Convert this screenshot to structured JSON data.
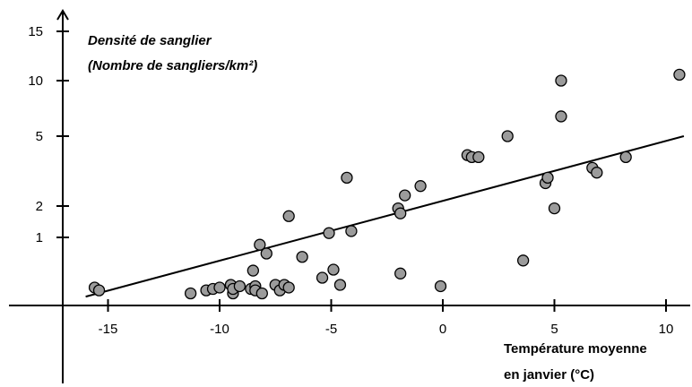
{
  "chart_data": {
    "type": "scatter",
    "ylabel_line1": "Densité de sanglier",
    "ylabel_line2": "(Nombre de sangliers/km²)",
    "xlabel_line1": "Température moyenne",
    "xlabel_line2": "en janvier (°C)",
    "x_ticks": [
      {
        "value": -15,
        "label": "-15"
      },
      {
        "value": -10,
        "label": "-10"
      },
      {
        "value": -5,
        "label": "-5"
      },
      {
        "value": 0,
        "label": "0"
      },
      {
        "value": 5,
        "label": "5"
      },
      {
        "value": 10,
        "label": "10"
      }
    ],
    "y_ticks": [
      {
        "value": 1,
        "label": "1"
      },
      {
        "value": 2,
        "label": "2"
      },
      {
        "value": 5,
        "label": "5"
      },
      {
        "value": 10,
        "label": "10"
      },
      {
        "value": 15,
        "label": "15"
      }
    ],
    "xlim": [
      -17,
      11
    ],
    "y_scale": "log",
    "points": [
      {
        "x": -15.6,
        "y": 0.33
      },
      {
        "x": -15.4,
        "y": 0.31
      },
      {
        "x": -11.3,
        "y": 0.29
      },
      {
        "x": -10.6,
        "y": 0.31
      },
      {
        "x": -10.3,
        "y": 0.32
      },
      {
        "x": -10.0,
        "y": 0.33
      },
      {
        "x": -9.5,
        "y": 0.35
      },
      {
        "x": -9.4,
        "y": 0.29
      },
      {
        "x": -9.4,
        "y": 0.32
      },
      {
        "x": -9.1,
        "y": 0.34
      },
      {
        "x": -8.6,
        "y": 0.32
      },
      {
        "x": -8.5,
        "y": 0.48
      },
      {
        "x": -8.4,
        "y": 0.34
      },
      {
        "x": -8.4,
        "y": 0.31
      },
      {
        "x": -8.2,
        "y": 0.85
      },
      {
        "x": -8.1,
        "y": 0.29
      },
      {
        "x": -7.9,
        "y": 0.7
      },
      {
        "x": -7.5,
        "y": 0.35
      },
      {
        "x": -7.3,
        "y": 0.31
      },
      {
        "x": -7.1,
        "y": 0.35
      },
      {
        "x": -6.9,
        "y": 1.6
      },
      {
        "x": -6.9,
        "y": 0.33
      },
      {
        "x": -6.3,
        "y": 0.65
      },
      {
        "x": -5.4,
        "y": 0.41
      },
      {
        "x": -5.1,
        "y": 1.1
      },
      {
        "x": -4.9,
        "y": 0.49
      },
      {
        "x": -4.6,
        "y": 0.35
      },
      {
        "x": -4.3,
        "y": 2.9
      },
      {
        "x": -4.1,
        "y": 1.15
      },
      {
        "x": -2.0,
        "y": 1.9
      },
      {
        "x": -1.9,
        "y": 1.7
      },
      {
        "x": -1.9,
        "y": 0.45
      },
      {
        "x": -1.7,
        "y": 2.3
      },
      {
        "x": -1.0,
        "y": 2.6
      },
      {
        "x": -0.1,
        "y": 0.34
      },
      {
        "x": 1.1,
        "y": 3.9
      },
      {
        "x": 1.3,
        "y": 3.8
      },
      {
        "x": 1.6,
        "y": 3.8
      },
      {
        "x": 2.9,
        "y": 5.0
      },
      {
        "x": 3.6,
        "y": 0.6
      },
      {
        "x": 4.6,
        "y": 2.7
      },
      {
        "x": 4.7,
        "y": 2.9
      },
      {
        "x": 5.0,
        "y": 1.9
      },
      {
        "x": 5.3,
        "y": 10.0
      },
      {
        "x": 5.3,
        "y": 6.4
      },
      {
        "x": 6.7,
        "y": 3.3
      },
      {
        "x": 6.9,
        "y": 3.1
      },
      {
        "x": 8.2,
        "y": 3.8
      },
      {
        "x": 10.6,
        "y": 10.5
      }
    ],
    "trendline": [
      {
        "x": -16.0,
        "y": 0.27
      },
      {
        "x": 10.8,
        "y": 5.0
      }
    ],
    "grid": false,
    "legend": "none"
  }
}
